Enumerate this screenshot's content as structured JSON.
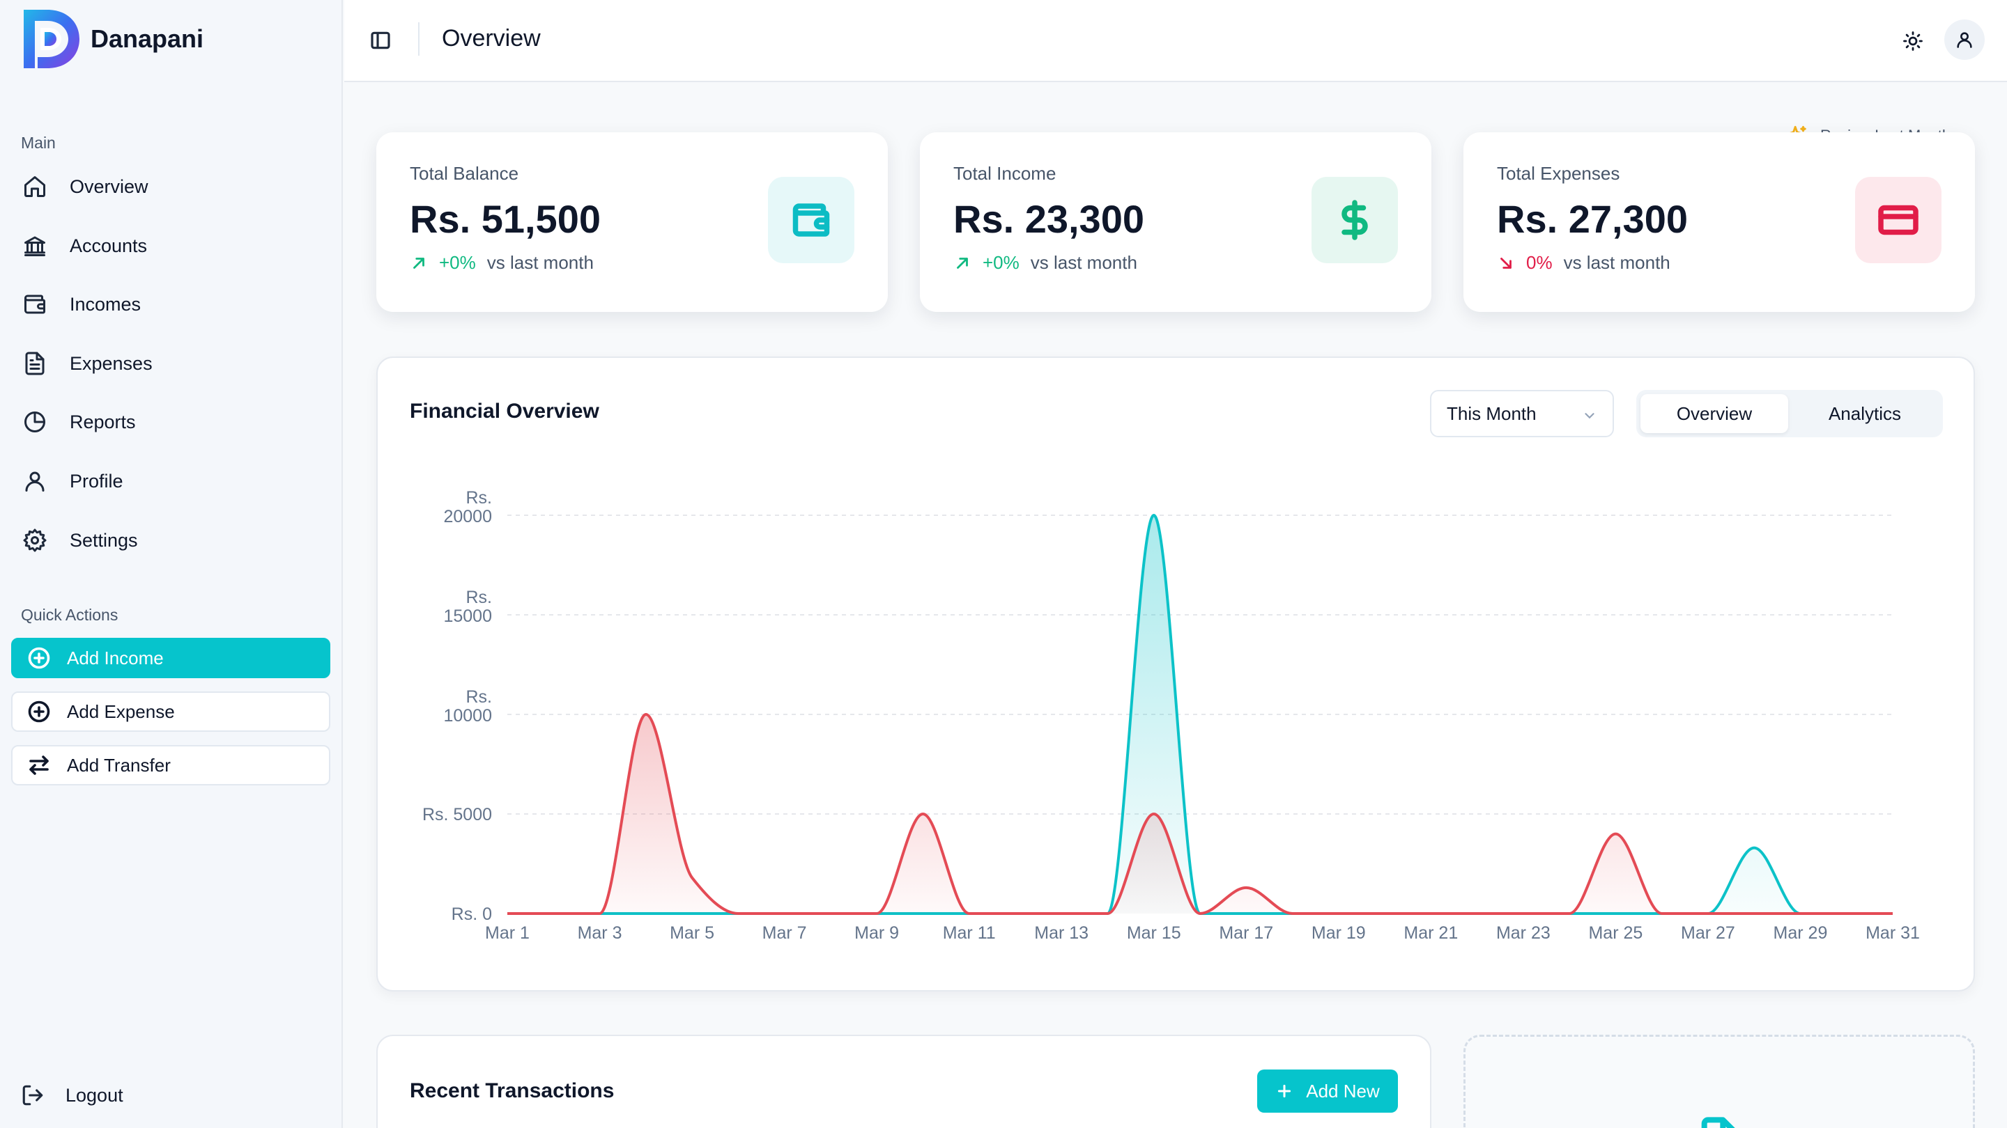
{
  "app": {
    "name": "Danapani",
    "colors": {
      "accent": "#06c4cc",
      "income": "#10b981",
      "expense": "#e11d48",
      "chart_income": "#0cc2c8",
      "chart_expense": "#e44b55"
    }
  },
  "sidebar": {
    "main_label": "Main",
    "items": [
      {
        "label": "Overview",
        "icon": "home-icon"
      },
      {
        "label": "Accounts",
        "icon": "bank-icon"
      },
      {
        "label": "Incomes",
        "icon": "wallet-icon"
      },
      {
        "label": "Expenses",
        "icon": "document-icon"
      },
      {
        "label": "Reports",
        "icon": "pie-chart-icon"
      },
      {
        "label": "Profile",
        "icon": "user-icon"
      },
      {
        "label": "Settings",
        "icon": "gear-icon"
      }
    ],
    "quick_actions_label": "Quick Actions",
    "quick_actions": [
      {
        "label": "Add Income",
        "icon": "plus-circle-icon"
      },
      {
        "label": "Add Expense",
        "icon": "plus-circle-icon"
      },
      {
        "label": "Add Transfer",
        "icon": "arrows-swap-icon"
      }
    ],
    "logout_label": "Logout"
  },
  "header": {
    "title": "Overview"
  },
  "review_link": "Review Last Month",
  "stats": [
    {
      "label": "Total Balance",
      "value": "Rs. 51,500",
      "change": "+0%",
      "vs": "vs last month",
      "trend": "up",
      "icon": "wallet-icon",
      "color": "#10b981",
      "icon_bg": "#e6f8f9",
      "icon_color": "#0cbcc4"
    },
    {
      "label": "Total Income",
      "value": "Rs. 23,300",
      "change": "+0%",
      "vs": "vs last month",
      "trend": "up",
      "icon": "dollar-icon",
      "color": "#10b981",
      "icon_bg": "#e6f7f1",
      "icon_color": "#10b981"
    },
    {
      "label": "Total Expenses",
      "value": "Rs. 27,300",
      "change": "0%",
      "vs": "vs last month",
      "trend": "down",
      "icon": "credit-card-icon",
      "color": "#e11d48",
      "icon_bg": "#fde8ec",
      "icon_color": "#e11d48"
    }
  ],
  "financial_overview": {
    "title": "Financial Overview",
    "period": "This Month",
    "tabs": [
      {
        "label": "Overview",
        "active": true
      },
      {
        "label": "Analytics",
        "active": false
      }
    ]
  },
  "chart_data": {
    "type": "area",
    "title": "Financial Overview",
    "x": [
      "Mar 1",
      "Mar 2",
      "Mar 3",
      "Mar 4",
      "Mar 5",
      "Mar 6",
      "Mar 7",
      "Mar 8",
      "Mar 9",
      "Mar 10",
      "Mar 11",
      "Mar 12",
      "Mar 13",
      "Mar 14",
      "Mar 15",
      "Mar 16",
      "Mar 17",
      "Mar 18",
      "Mar 19",
      "Mar 20",
      "Mar 21",
      "Mar 22",
      "Mar 23",
      "Mar 24",
      "Mar 25",
      "Mar 26",
      "Mar 27",
      "Mar 28",
      "Mar 29",
      "Mar 30",
      "Mar 31"
    ],
    "x_ticks": [
      "Mar 1",
      "Mar 3",
      "Mar 5",
      "Mar 7",
      "Mar 9",
      "Mar 11",
      "Mar 13",
      "Mar 15",
      "Mar 17",
      "Mar 19",
      "Mar 21",
      "Mar 23",
      "Mar 25",
      "Mar 27",
      "Mar 29",
      "Mar 31"
    ],
    "y_ticks": [
      0,
      5000,
      10000,
      15000,
      20000
    ],
    "y_tick_prefix": "Rs.",
    "ylim": [
      0,
      20000
    ],
    "series": [
      {
        "key": "income",
        "values": [
          0,
          0,
          0,
          0,
          0,
          0,
          0,
          0,
          0,
          0,
          0,
          0,
          0,
          0,
          20000,
          0,
          0,
          0,
          0,
          0,
          0,
          0,
          0,
          0,
          0,
          0,
          0,
          3300,
          0,
          0,
          0
        ]
      },
      {
        "key": "expense",
        "values": [
          0,
          0,
          0,
          10000,
          1800,
          0,
          0,
          0,
          0,
          5000,
          0,
          0,
          0,
          0,
          5000,
          0,
          1300,
          0,
          0,
          0,
          0,
          0,
          0,
          0,
          4000,
          0,
          0,
          0,
          0,
          0,
          0
        ]
      }
    ],
    "grid": true
  },
  "recent": {
    "title": "Recent Transactions",
    "add_new": "Add New"
  }
}
